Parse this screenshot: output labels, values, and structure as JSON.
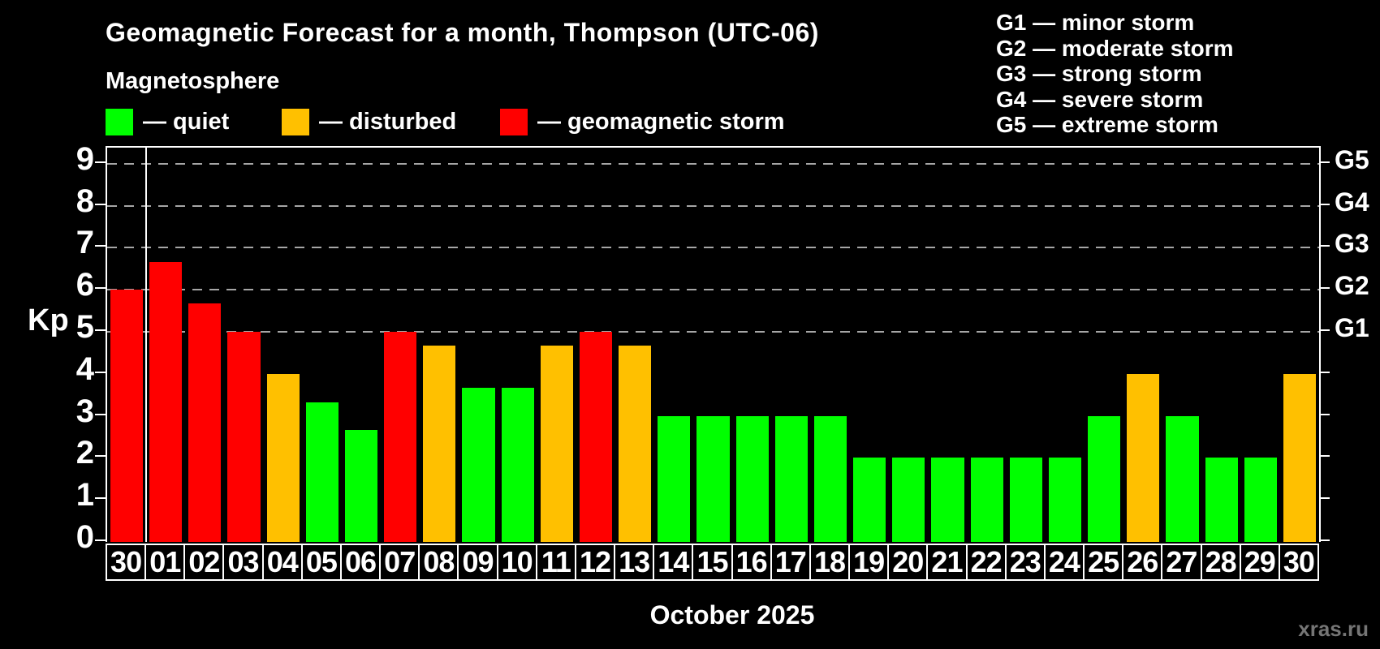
{
  "title": "Geomagnetic Forecast for a month, Thompson (UTC-06)",
  "subtitle": "Magnetosphere",
  "legend": {
    "items": [
      {
        "key": "quiet",
        "label": "— quiet",
        "color": "#00ff00"
      },
      {
        "key": "disturbed",
        "label": "— disturbed",
        "color": "#ffc000"
      },
      {
        "key": "storm",
        "label": "— geomagnetic storm",
        "color": "#ff0000"
      }
    ]
  },
  "storm_scale_legend": [
    "G1 — minor storm",
    "G2 — moderate storm",
    "G3 — strong storm",
    "G4 — severe storm",
    "G5 — extreme storm"
  ],
  "watermark": "xras.ru",
  "chart_data": {
    "type": "bar",
    "title": "Geomagnetic Forecast for a month, Thompson (UTC-06)",
    "subtitle": "Magnetosphere",
    "xlabel": "October 2025",
    "ylabel": "Kp",
    "ylim": [
      0,
      9.4
    ],
    "yticks": [
      0,
      1,
      2,
      3,
      4,
      5,
      6,
      7,
      8,
      9
    ],
    "gridlines_at_kp": [
      5,
      6,
      7,
      8,
      9
    ],
    "right_axis_labels": [
      {
        "kp": 5,
        "label": "G1"
      },
      {
        "kp": 6,
        "label": "G2"
      },
      {
        "kp": 7,
        "label": "G3"
      },
      {
        "kp": 8,
        "label": "G4"
      },
      {
        "kp": 9,
        "label": "G5"
      }
    ],
    "status_colors": {
      "quiet": "#00ff00",
      "disturbed": "#ffc000",
      "storm": "#ff0000"
    },
    "month_divider_after_index": 0,
    "categories": [
      "30",
      "01",
      "02",
      "03",
      "04",
      "05",
      "06",
      "07",
      "08",
      "09",
      "10",
      "11",
      "12",
      "13",
      "14",
      "15",
      "16",
      "17",
      "18",
      "19",
      "20",
      "21",
      "22",
      "23",
      "24",
      "25",
      "26",
      "27",
      "28",
      "29",
      "30"
    ],
    "values": [
      6.0,
      6.67,
      5.67,
      5.0,
      4.0,
      3.33,
      2.67,
      5.0,
      4.67,
      3.67,
      3.67,
      4.67,
      5.0,
      4.67,
      3.0,
      3.0,
      3.0,
      3.0,
      3.0,
      2.0,
      2.0,
      2.0,
      2.0,
      2.0,
      2.0,
      3.0,
      4.0,
      3.0,
      2.0,
      2.0,
      4.0
    ],
    "status": [
      "storm",
      "storm",
      "storm",
      "storm",
      "disturbed",
      "quiet",
      "quiet",
      "storm",
      "disturbed",
      "quiet",
      "quiet",
      "disturbed",
      "storm",
      "disturbed",
      "quiet",
      "quiet",
      "quiet",
      "quiet",
      "quiet",
      "quiet",
      "quiet",
      "quiet",
      "quiet",
      "quiet",
      "quiet",
      "quiet",
      "disturbed",
      "quiet",
      "quiet",
      "quiet",
      "disturbed"
    ]
  }
}
